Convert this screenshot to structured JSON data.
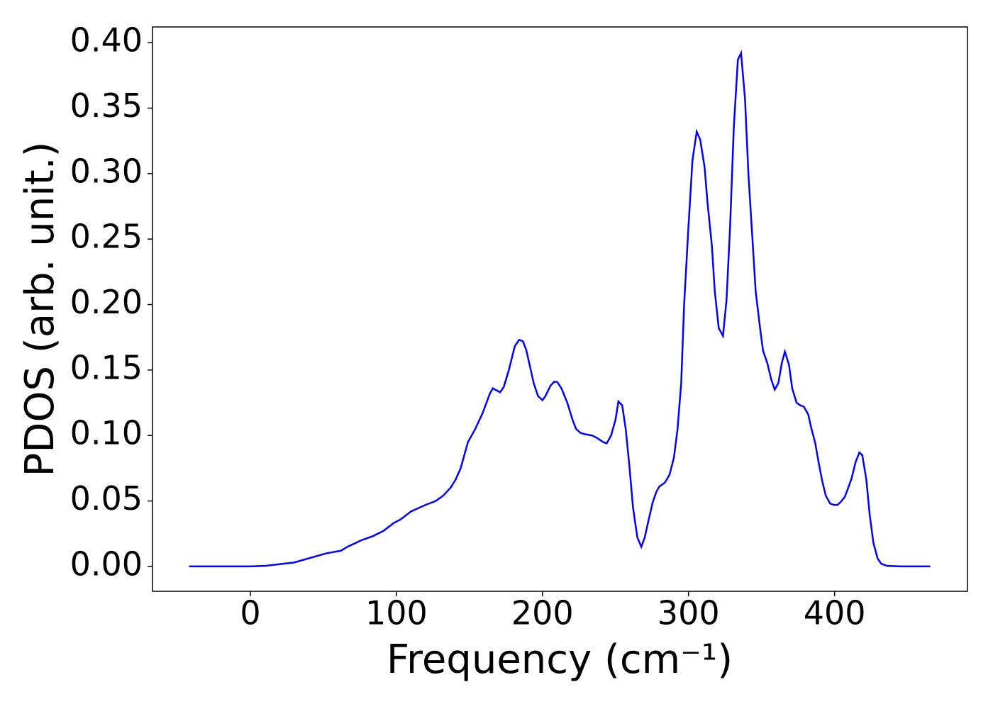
{
  "chart_data": {
    "type": "line",
    "x_label": "Frequency (cm⁻¹)",
    "y_label": "PDOS (arb. unit.)",
    "series": [
      {
        "name": "PDOS",
        "color": "#0000ff",
        "x": [
          -42,
          0,
          10.7,
          30,
          52,
          62,
          66.5,
          76,
          83.6,
          91,
          98,
          103,
          110,
          120,
          127,
          132,
          137,
          140.4,
          144,
          149,
          154,
          159,
          164,
          166,
          171,
          173.5,
          177,
          181,
          184,
          186.6,
          189,
          194,
          197,
          200,
          202,
          205.5,
          208,
          210,
          213,
          217,
          220.6,
          223,
          226,
          229,
          234,
          237.6,
          241.5,
          244,
          247,
          250,
          252,
          254.6,
          257,
          259.5,
          262,
          265,
          267.7,
          270,
          273,
          275.5,
          278,
          280,
          283.8,
          287,
          290,
          292.5,
          295,
          297,
          300,
          302.7,
          305.6,
          308,
          311,
          313,
          316,
          318,
          320.7,
          323.6,
          326,
          328.5,
          331,
          333.8,
          336,
          338.7,
          341,
          343.5,
          346,
          349,
          351,
          354,
          356.6,
          359,
          361.5,
          364,
          366,
          368.8,
          371,
          374,
          376.6,
          379,
          382,
          384,
          386.8,
          389,
          391.6,
          394,
          397,
          399.5,
          402,
          404,
          407,
          409,
          411.6,
          414.5,
          417,
          419,
          421.8,
          424,
          426.6,
          429.5,
          432,
          436,
          445.6,
          465.5
        ],
        "values": [
          0,
          0,
          0.0005,
          0.003,
          0.01,
          0.012,
          0.015,
          0.02,
          0.023,
          0.027,
          0.033,
          0.036,
          0.042,
          0.047,
          0.05,
          0.054,
          0.06,
          0.066,
          0.075,
          0.095,
          0.105,
          0.117,
          0.132,
          0.136,
          0.133,
          0.137,
          0.15,
          0.168,
          0.173,
          0.172,
          0.165,
          0.14,
          0.13,
          0.127,
          0.13,
          0.138,
          0.141,
          0.141,
          0.136,
          0.125,
          0.112,
          0.105,
          0.102,
          0.101,
          0.1,
          0.098,
          0.095,
          0.094,
          0.1,
          0.112,
          0.126,
          0.123,
          0.105,
          0.077,
          0.045,
          0.022,
          0.015,
          0.022,
          0.037,
          0.049,
          0.057,
          0.061,
          0.064,
          0.07,
          0.083,
          0.105,
          0.14,
          0.2,
          0.26,
          0.31,
          0.332,
          0.326,
          0.305,
          0.278,
          0.245,
          0.21,
          0.182,
          0.176,
          0.203,
          0.26,
          0.335,
          0.387,
          0.392,
          0.357,
          0.3,
          0.255,
          0.21,
          0.182,
          0.165,
          0.155,
          0.143,
          0.135,
          0.14,
          0.156,
          0.164,
          0.154,
          0.136,
          0.125,
          0.123,
          0.122,
          0.116,
          0.106,
          0.094,
          0.08,
          0.065,
          0.054,
          0.048,
          0.047,
          0.047,
          0.049,
          0.053,
          0.059,
          0.067,
          0.08,
          0.087,
          0.085,
          0.066,
          0.04,
          0.018,
          0.006,
          0.002,
          0.0004,
          0,
          0
        ]
      }
    ],
    "xlim": [
      -67,
      491
    ],
    "xticks": [
      0,
      100,
      200,
      300,
      400
    ],
    "ylim": [
      -0.019,
      0.412
    ],
    "yticks": [
      {
        "value": 0,
        "label": "0.00"
      },
      {
        "value": 0.05,
        "label": "0.05"
      },
      {
        "value": 0.1,
        "label": "0.10"
      },
      {
        "value": 0.15,
        "label": "0.15"
      },
      {
        "value": 0.2,
        "label": "0.20"
      },
      {
        "value": 0.25,
        "label": "0.25"
      },
      {
        "value": 0.3,
        "label": "0.30"
      },
      {
        "value": 0.35,
        "label": "0.35"
      },
      {
        "value": 0.4,
        "label": "0.40"
      }
    ],
    "grid": false
  }
}
